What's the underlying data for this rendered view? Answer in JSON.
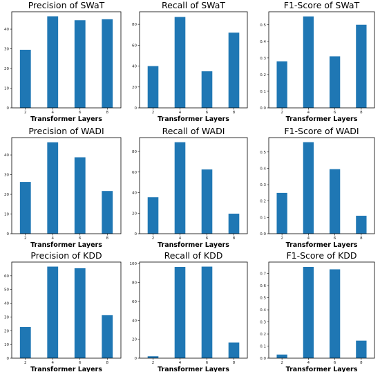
{
  "colors": {
    "bar": "#1f77b4"
  },
  "chart_data": [
    {
      "type": "bar",
      "title": "Precision of SWaT",
      "xlabel": "Transformer Layers",
      "ylabel": "",
      "categories": [
        "2",
        "4",
        "6",
        "8"
      ],
      "values": [
        29.5,
        46.5,
        44.5,
        45.0
      ],
      "ylim": [
        0,
        48.8
      ],
      "yticks": [
        0,
        10,
        20,
        30,
        40
      ]
    },
    {
      "type": "bar",
      "title": "Recall of SWaT",
      "xlabel": "Transformer Layers",
      "ylabel": "",
      "categories": [
        "2",
        "4",
        "6",
        "8"
      ],
      "values": [
        40,
        87,
        35,
        72
      ],
      "ylim": [
        0,
        92
      ],
      "yticks": [
        0,
        20,
        40,
        60,
        80
      ]
    },
    {
      "type": "bar",
      "title": "F1-Score of SWaT",
      "xlabel": "Transformer Layers",
      "ylabel": "",
      "categories": [
        "2",
        "4",
        "6",
        "8"
      ],
      "values": [
        0.28,
        0.55,
        0.31,
        0.5
      ],
      "ylim": [
        0,
        0.578
      ],
      "yticks": [
        0.0,
        0.1,
        0.2,
        0.3,
        0.4,
        0.5
      ]
    },
    {
      "type": "bar",
      "title": "Precision of WADI",
      "xlabel": "Transformer Layers",
      "ylabel": "",
      "categories": [
        "2",
        "4",
        "6",
        "8"
      ],
      "values": [
        26.3,
        46.4,
        38.8,
        21.7
      ],
      "ylim": [
        0,
        48.8
      ],
      "yticks": [
        0,
        10,
        20,
        30,
        40
      ]
    },
    {
      "type": "bar",
      "title": "Recall of WADI",
      "xlabel": "Transformer Layers",
      "ylabel": "",
      "categories": [
        "2",
        "4",
        "6",
        "8"
      ],
      "values": [
        35.5,
        89,
        62.5,
        19.5
      ],
      "ylim": [
        0,
        93.5
      ],
      "yticks": [
        0,
        20,
        40,
        60,
        80
      ]
    },
    {
      "type": "bar",
      "title": "F1-Score of WADI",
      "xlabel": "Transformer Layers",
      "ylabel": "",
      "categories": [
        "2",
        "4",
        "6",
        "8"
      ],
      "values": [
        0.25,
        0.56,
        0.395,
        0.11
      ],
      "ylim": [
        0,
        0.588
      ],
      "yticks": [
        0.0,
        0.1,
        0.2,
        0.3,
        0.4,
        0.5
      ]
    },
    {
      "type": "bar",
      "title": "Precision of KDD",
      "xlabel": "Transformer Layers",
      "ylabel": "",
      "categories": [
        "2",
        "4",
        "6",
        "8"
      ],
      "values": [
        22.7,
        66.7,
        65.5,
        31.3
      ],
      "ylim": [
        0,
        70
      ],
      "yticks": [
        0,
        10,
        20,
        30,
        40,
        50,
        60
      ]
    },
    {
      "type": "bar",
      "title": "Recall of KDD",
      "xlabel": "Transformer Layers",
      "ylabel": "",
      "categories": [
        "2",
        "4",
        "6",
        "8"
      ],
      "values": [
        2,
        96.5,
        96.8,
        16.5
      ],
      "ylim": [
        0,
        101.6
      ],
      "yticks": [
        0,
        20,
        40,
        60,
        80,
        100
      ]
    },
    {
      "type": "bar",
      "title": "F1-Score of KDD",
      "xlabel": "Transformer Layers",
      "ylabel": "",
      "categories": [
        "2",
        "4",
        "6",
        "8"
      ],
      "values": [
        0.03,
        0.755,
        0.735,
        0.145
      ],
      "ylim": [
        0,
        0.795
      ],
      "yticks": [
        0.0,
        0.1,
        0.2,
        0.3,
        0.4,
        0.5,
        0.6,
        0.7
      ]
    }
  ]
}
